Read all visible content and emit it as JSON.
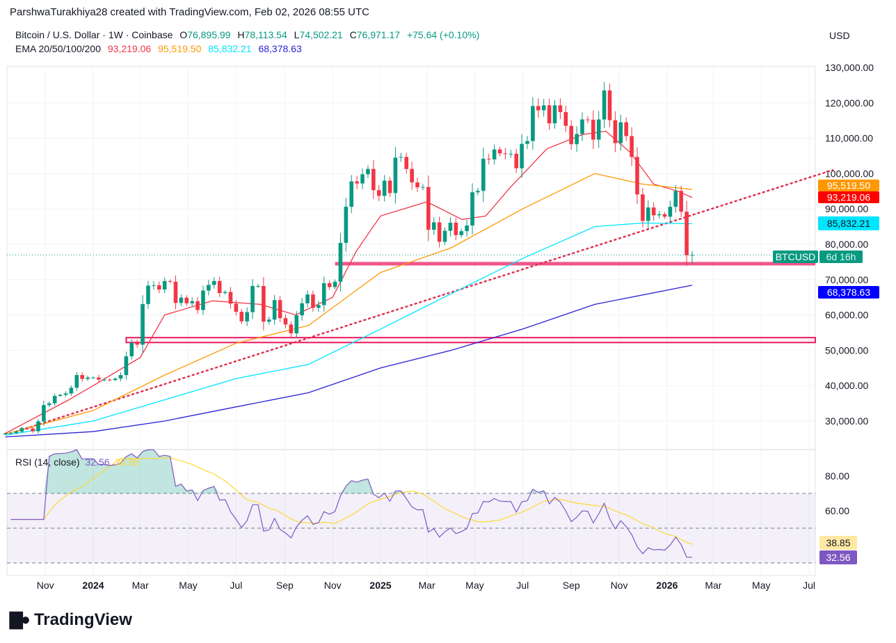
{
  "credit": "ParshwaTurakhiya28 created with TradingView.com, Feb 02, 2026 08:55 UTC",
  "symbol": {
    "name": "Bitcoin / U.S. Dollar · 1W · Coinbase",
    "o_label": "O",
    "o": "76,895.99",
    "h_label": "H",
    "h": "78,113.54",
    "l_label": "L",
    "l": "74,502.21",
    "c_label": "C",
    "c": "76,971.17",
    "change": "+75.64 (+0.10%)"
  },
  "ema": {
    "label": "EMA 20/50/100/200",
    "v20": "93,219.06",
    "v50": "95,519.50",
    "v100": "85,832.21",
    "v200": "68,378.63"
  },
  "currency": "USD",
  "ticker_badge": "BTCUSD",
  "countdown": "6d 16h",
  "rsi": {
    "label": "RSI (14, close)",
    "value": "32.56",
    "ma": "38.85"
  },
  "logo": "TradingView",
  "colors": {
    "up": "#089981",
    "down": "#f23645",
    "ema20": "#f23645",
    "ema50": "#ff9800",
    "ema100": "#00e5ff",
    "ema200": "#2a1fd6",
    "rsi": "#7e57c2",
    "rsi_ma": "#fdd835",
    "zone": "#e91e63"
  },
  "chart_data": {
    "type": "candlestick",
    "interval": "1W",
    "first_week": "2023-09-11",
    "closes_k": [
      26.5,
      26.6,
      27.0,
      28.0,
      27.9,
      27.1,
      29.9,
      34.5,
      35.0,
      37.1,
      37.4,
      37.8,
      39.4,
      43.0,
      41.9,
      42.3,
      42.3,
      41.7,
      41.7,
      41.6,
      42.0,
      43.0,
      48.3,
      52.1,
      51.6,
      63.1,
      68.3,
      68.4,
      67.2,
      69.6,
      69.4,
      63.4,
      64.9,
      63.3,
      63.9,
      61.4,
      66.9,
      68.5,
      69.6,
      66.2,
      66.5,
      63.2,
      60.9,
      58.2,
      60.8,
      68.2,
      68.2,
      58.1,
      58.7,
      64.2,
      59.1,
      57.3,
      54.8,
      59.9,
      63.3,
      65.8,
      62.0,
      62.8,
      69.0,
      67.9,
      69.4,
      80.4,
      90.6,
      97.8,
      97.2,
      99.8,
      101.3,
      95.3,
      93.7,
      98.0,
      94.5,
      104.5,
      104.7,
      101.3,
      97.5,
      96.1,
      96.2,
      84.1,
      86.2,
      80.7,
      83.8,
      86.1,
      82.6,
      83.7,
      85.3,
      94.7,
      95.1,
      104.2,
      104.0,
      106.8,
      105.7,
      105.6,
      105.6,
      101.5,
      108.4,
      109.2,
      119.1,
      117.9,
      119.3,
      114.2,
      119.3,
      117.4,
      113.5,
      108.3,
      111.2,
      115.3,
      115.2,
      109.6,
      115.3,
      123.5,
      115.1,
      108.6,
      114.5,
      110.6,
      104.7,
      94.1,
      86.6,
      90.4,
      88.2,
      88.5,
      87.8,
      90.6,
      95.1,
      89.2,
      76.9,
      76.97
    ],
    "ema": {
      "ema20": [
        [
          "2023-09-11",
          26.5
        ],
        [
          "2023-12-01",
          36
        ],
        [
          "2024-01-01",
          40
        ],
        [
          "2024-03-01",
          48
        ],
        [
          "2024-04-01",
          60
        ],
        [
          "2024-06-01",
          64
        ],
        [
          "2024-08-01",
          63
        ],
        [
          "2024-09-15",
          60
        ],
        [
          "2024-11-01",
          65
        ],
        [
          "2024-12-01",
          78
        ],
        [
          "2025-01-01",
          88
        ],
        [
          "2025-03-01",
          92
        ],
        [
          "2025-04-15",
          87
        ],
        [
          "2025-05-15",
          88
        ],
        [
          "2025-06-15",
          96
        ],
        [
          "2025-08-01",
          107
        ],
        [
          "2025-09-15",
          111
        ],
        [
          "2025-10-15",
          112
        ],
        [
          "2025-11-15",
          106
        ],
        [
          "2025-12-15",
          97
        ],
        [
          "2026-01-15",
          95
        ],
        [
          "2026-02-02",
          93.2
        ]
      ],
      "ema50": [
        [
          "2023-09-11",
          26.3
        ],
        [
          "2024-01-01",
          33
        ],
        [
          "2024-04-01",
          43
        ],
        [
          "2024-07-01",
          52
        ],
        [
          "2024-10-01",
          57
        ],
        [
          "2025-01-01",
          72
        ],
        [
          "2025-04-01",
          79
        ],
        [
          "2025-07-01",
          90
        ],
        [
          "2025-10-01",
          100
        ],
        [
          "2025-12-01",
          97
        ],
        [
          "2026-02-02",
          95.5
        ]
      ],
      "ema100": [
        [
          "2023-09-11",
          26
        ],
        [
          "2024-01-01",
          30
        ],
        [
          "2024-04-01",
          36
        ],
        [
          "2024-07-01",
          42
        ],
        [
          "2024-10-01",
          46
        ],
        [
          "2025-01-01",
          56
        ],
        [
          "2025-04-01",
          66
        ],
        [
          "2025-07-01",
          76
        ],
        [
          "2025-10-01",
          85
        ],
        [
          "2025-12-01",
          86
        ],
        [
          "2026-02-02",
          85.8
        ]
      ],
      "ema200": [
        [
          "2023-09-11",
          25.5
        ],
        [
          "2024-01-01",
          27
        ],
        [
          "2024-04-01",
          30
        ],
        [
          "2024-07-01",
          34
        ],
        [
          "2024-10-01",
          38
        ],
        [
          "2025-01-01",
          45
        ],
        [
          "2025-04-01",
          50
        ],
        [
          "2025-07-01",
          56
        ],
        [
          "2025-10-01",
          63
        ],
        [
          "2026-02-02",
          68.4
        ]
      ]
    },
    "trendline": [
      [
        "2023-09-25",
        27
      ],
      [
        "2026-07-31",
        101
      ]
    ],
    "zones": [
      {
        "from": "2024-11-04",
        "top": 75.0,
        "bottom": 74.0
      },
      {
        "from": "2024-02-12",
        "top": 53.6,
        "bottom": 52.2
      }
    ],
    "price_axis": {
      "ticks": [
        "130,000.00",
        "120,000.00",
        "110,000.00",
        "100,000.00",
        "90,000.00",
        "80,000.00",
        "70,000.00",
        "60,000.00",
        "50,000.00",
        "40,000.00",
        "30,000.00"
      ],
      "tick_values": [
        130,
        120,
        110,
        100,
        90,
        80,
        70,
        60,
        50,
        40,
        30
      ]
    },
    "rsi_axis": {
      "ticks": [
        "80.00",
        "60.00"
      ],
      "tick_values": [
        80,
        60
      ],
      "bands": [
        70,
        50,
        30
      ]
    },
    "time_axis": [
      [
        "Nov",
        "2023-11-01"
      ],
      [
        "2024",
        "2024-01-01"
      ],
      [
        "Mar",
        "2024-03-01"
      ],
      [
        "May",
        "2024-05-01"
      ],
      [
        "Jul",
        "2024-07-01"
      ],
      [
        "Sep",
        "2024-09-01"
      ],
      [
        "Nov",
        "2024-11-01"
      ],
      [
        "2025",
        "2025-01-01"
      ],
      [
        "Mar",
        "2025-03-01"
      ],
      [
        "May",
        "2025-05-01"
      ],
      [
        "Jul",
        "2025-07-01"
      ],
      [
        "Sep",
        "2025-09-01"
      ],
      [
        "Nov",
        "2025-11-01"
      ],
      [
        "2026",
        "2026-01-01"
      ],
      [
        "Mar",
        "2026-03-01"
      ],
      [
        "May",
        "2026-05-01"
      ],
      [
        "Jul",
        "2026-07-01"
      ]
    ]
  }
}
